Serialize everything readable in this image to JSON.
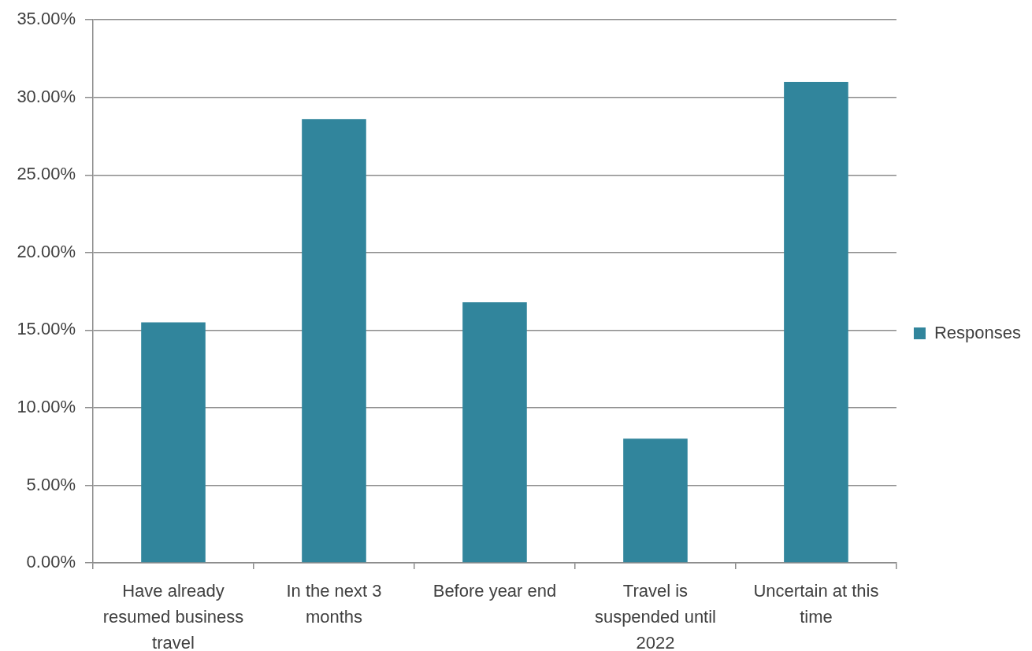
{
  "chart_data": {
    "type": "bar",
    "categories": [
      "Have already resumed business travel",
      "In the next 3 months",
      "Before year end",
      "Travel is suspended until 2022",
      "Uncertain at this time"
    ],
    "series": [
      {
        "name": "Responses",
        "color": "#31859c",
        "values": [
          15.5,
          28.6,
          16.8,
          8.0,
          31.0
        ]
      }
    ],
    "ylim": [
      0,
      35
    ],
    "yticks": [
      {
        "value": 0,
        "label": "0.00%"
      },
      {
        "value": 5,
        "label": "5.00%"
      },
      {
        "value": 10,
        "label": "10.00%"
      },
      {
        "value": 15,
        "label": "15.00%"
      },
      {
        "value": 20,
        "label": "20.00%"
      },
      {
        "value": 25,
        "label": "25.00%"
      },
      {
        "value": 30,
        "label": "30.00%"
      },
      {
        "value": 35,
        "label": "35.00%"
      }
    ],
    "grid": "y",
    "legend": "right"
  }
}
